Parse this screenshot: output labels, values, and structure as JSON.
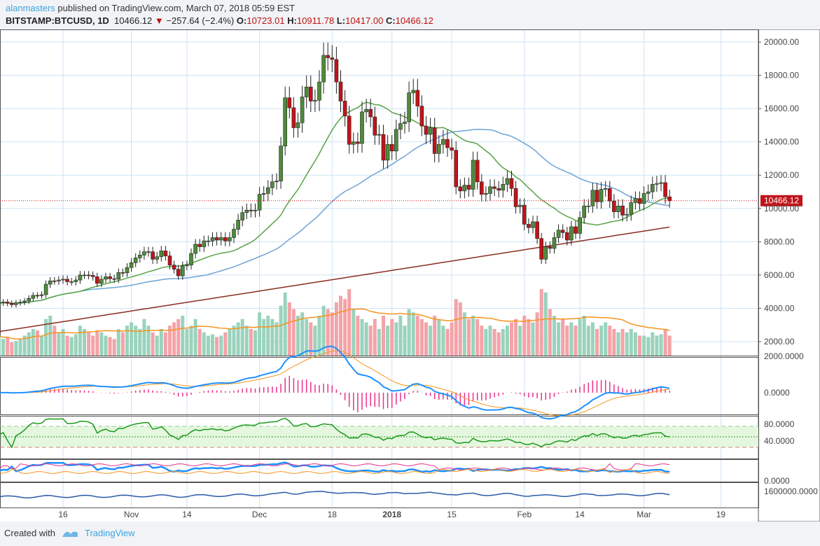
{
  "header": {
    "user": "alanmasters",
    "published": " published on TradingView.com, March 07, 2018 05:59 EST",
    "symbol": "BITSTAMP:BTCUSD, 1D",
    "last": "10466.12",
    "change": "−257.64 (−2.4%)",
    "o_label": "O:",
    "o": "10723.01",
    "h_label": "H:",
    "h": "10911.78",
    "l_label": "L:",
    "l": "10417.00",
    "c_label": "C:",
    "c": "10466.12"
  },
  "price_axis": [
    "20000.00",
    "18000.00",
    "16000.00",
    "14000.00",
    "12000.00",
    "10000.00",
    "8000.00",
    "6000.00",
    "4000.00",
    "2000.00"
  ],
  "price_values": [
    20000,
    18000,
    16000,
    14000,
    12000,
    10000,
    8000,
    6000,
    4000,
    2000
  ],
  "last_price_label": "10466.12",
  "macd_axis": [
    "2000.0000",
    "0.0000"
  ],
  "rsi_axis": [
    "80.0000",
    "40.0000"
  ],
  "pane4_axis": [
    "0.0000"
  ],
  "pane5_axis": [
    "1600000.0000"
  ],
  "time_labels": [
    "16",
    "Nov",
    "14",
    "Dec",
    "18",
    "2018",
    "15",
    "Feb",
    "14",
    "Mar",
    "19"
  ],
  "time_label_days": [
    15,
    31,
    44,
    61,
    78,
    92,
    106,
    123,
    136,
    151,
    169
  ],
  "colors": {
    "up": "#4e8c3a",
    "down": "#c0141a",
    "ma_fast": "#5aa246",
    "ma_mid": "#6fa3d8",
    "ma_slow": "#8b2e22",
    "grid": "#cfe2f3",
    "vol_up": "#9ad3bc",
    "vol_down": "#f4a3a8"
  },
  "chart_data": {
    "type": "candlestick",
    "start": "2017-10-01",
    "interval": "1D",
    "closes": [
      4320,
      4380,
      4300,
      4220,
      4330,
      4370,
      4440,
      4600,
      4780,
      4760,
      4820,
      5450,
      5650,
      5640,
      5700,
      5750,
      5600,
      5600,
      5700,
      6000,
      6000,
      5980,
      5900,
      5500,
      5750,
      5900,
      5780,
      5750,
      6150,
      6130,
      6450,
      6740,
      7030,
      7200,
      7400,
      7400,
      6950,
      7100,
      7450,
      7150,
      6600,
      6350,
      5950,
      6550,
      6600,
      7300,
      7850,
      7700,
      8050,
      8050,
      8250,
      8100,
      8250,
      8050,
      8250,
      8750,
      9300,
      9750,
      9900,
      9850,
      9900,
      10850,
      10900,
      11250,
      11600,
      11650,
      13750,
      16650,
      16050,
      14850,
      15150,
      16700,
      17300,
      16450,
      16500,
      17600,
      19200,
      19050,
      18950,
      17600,
      16450,
      15550,
      13850,
      14000,
      13900,
      15800,
      15950,
      15500,
      14400,
      14450,
      12900,
      13850,
      13450,
      14750,
      15100,
      15200,
      16950,
      17100,
      16150,
      14950,
      14450,
      14850,
      13300,
      13850,
      14150,
      13650,
      13500,
      11300,
      11050,
      11400,
      11150,
      12900,
      11600,
      10850,
      10900,
      11300,
      11200,
      11100,
      11450,
      11800,
      11200,
      10100,
      10200,
      9050,
      8850,
      9200,
      8200,
      6950,
      7700,
      7600,
      8250,
      8700,
      8550,
      8100,
      8900,
      8500,
      9450,
      10150,
      10150,
      11100,
      10400,
      11150,
      11200,
      10450,
      9800,
      10150,
      9600,
      9650,
      10350,
      10600,
      10300,
      10900,
      11000,
      11450,
      11500,
      11550,
      10700,
      10466
    ],
    "volume_rel": [
      30,
      25,
      28,
      20,
      22,
      25,
      30,
      35,
      40,
      38,
      30,
      55,
      60,
      45,
      35,
      40,
      30,
      28,
      32,
      45,
      40,
      35,
      30,
      38,
      35,
      30,
      28,
      25,
      40,
      35,
      45,
      50,
      45,
      40,
      55,
      45,
      35,
      30,
      40,
      35,
      45,
      50,
      55,
      60,
      40,
      45,
      55,
      40,
      35,
      30,
      32,
      28,
      30,
      35,
      40,
      45,
      50,
      55,
      45,
      40,
      38,
      65,
      55,
      60,
      55,
      50,
      75,
      95,
      80,
      70,
      60,
      65,
      55,
      50,
      45,
      60,
      75,
      70,
      65,
      80,
      90,
      85,
      100,
      70,
      60,
      55,
      50,
      45,
      55,
      40,
      60,
      45,
      55,
      50,
      60,
      45,
      70,
      65,
      60,
      55,
      50,
      45,
      60,
      55,
      45,
      40,
      50,
      85,
      80,
      65,
      55,
      60,
      55,
      45,
      40,
      45,
      40,
      35,
      40,
      45,
      50,
      55,
      45,
      60,
      55,
      50,
      65,
      100,
      95,
      70,
      60,
      50,
      55,
      45,
      50,
      45,
      55,
      60,
      45,
      50,
      40,
      45,
      50,
      45,
      40,
      35,
      40,
      35,
      40,
      35,
      30,
      30,
      28,
      35,
      30,
      32,
      40,
      30
    ]
  },
  "footer": {
    "created": "Created with",
    "brand": "TradingView"
  }
}
